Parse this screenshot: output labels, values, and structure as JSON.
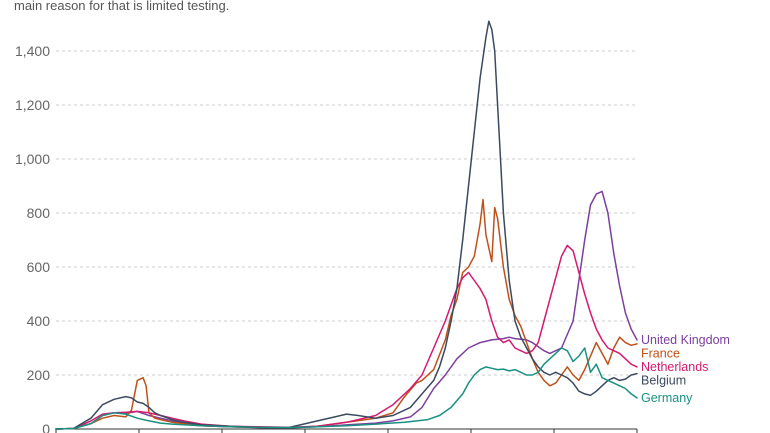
{
  "subtitle": "main reason for that is limited testing.",
  "chart_data": {
    "type": "line",
    "title": "",
    "xlabel": "",
    "ylabel": "",
    "x_range": [
      0,
      100
    ],
    "ylim": [
      0,
      1500
    ],
    "yticks": [
      0,
      200,
      400,
      600,
      800,
      1000,
      1200,
      1400
    ],
    "ytick_labels": [
      "0",
      "200",
      "400",
      "600",
      "800",
      "1,000",
      "1,200",
      "1,400"
    ],
    "grid": true,
    "legend": "inline-right",
    "series": [
      {
        "name": "United Kingdom",
        "color": "#7b3f9e",
        "points": [
          [
            0,
            0
          ],
          [
            3,
            2
          ],
          [
            6,
            20
          ],
          [
            8,
            50
          ],
          [
            10,
            60
          ],
          [
            12,
            58
          ],
          [
            14,
            65
          ],
          [
            16,
            50
          ],
          [
            18,
            40
          ],
          [
            20,
            30
          ],
          [
            22,
            20
          ],
          [
            25,
            12
          ],
          [
            30,
            8
          ],
          [
            35,
            5
          ],
          [
            40,
            4
          ],
          [
            45,
            8
          ],
          [
            50,
            15
          ],
          [
            55,
            22
          ],
          [
            58,
            30
          ],
          [
            61,
            45
          ],
          [
            63,
            80
          ],
          [
            65,
            150
          ],
          [
            67,
            200
          ],
          [
            69,
            260
          ],
          [
            71,
            300
          ],
          [
            73,
            320
          ],
          [
            75,
            330
          ],
          [
            77,
            335
          ],
          [
            78,
            340
          ],
          [
            79,
            335
          ],
          [
            81,
            330
          ],
          [
            82,
            320
          ],
          [
            84,
            290
          ],
          [
            85,
            280
          ],
          [
            87,
            300
          ],
          [
            89,
            400
          ],
          [
            90,
            550
          ],
          [
            91,
            700
          ],
          [
            92,
            830
          ],
          [
            93,
            870
          ],
          [
            94,
            880
          ],
          [
            95,
            800
          ],
          [
            96,
            650
          ],
          [
            97,
            530
          ],
          [
            98,
            430
          ],
          [
            99,
            370
          ],
          [
            100,
            330
          ]
        ]
      },
      {
        "name": "France",
        "color": "#c0501a",
        "points": [
          [
            0,
            0
          ],
          [
            3,
            2
          ],
          [
            6,
            20
          ],
          [
            8,
            40
          ],
          [
            10,
            50
          ],
          [
            12,
            45
          ],
          [
            13,
            70
          ],
          [
            14,
            180
          ],
          [
            15,
            190
          ],
          [
            15.5,
            160
          ],
          [
            16,
            60
          ],
          [
            17,
            40
          ],
          [
            18,
            35
          ],
          [
            20,
            25
          ],
          [
            25,
            12
          ],
          [
            30,
            8
          ],
          [
            35,
            6
          ],
          [
            40,
            5
          ],
          [
            45,
            10
          ],
          [
            50,
            25
          ],
          [
            55,
            40
          ],
          [
            58,
            60
          ],
          [
            60,
            120
          ],
          [
            62,
            170
          ],
          [
            63,
            180
          ],
          [
            65,
            220
          ],
          [
            67,
            330
          ],
          [
            68,
            420
          ],
          [
            69,
            480
          ],
          [
            70,
            580
          ],
          [
            71,
            600
          ],
          [
            72,
            640
          ],
          [
            73,
            760
          ],
          [
            73.5,
            850
          ],
          [
            74,
            720
          ],
          [
            75,
            620
          ],
          [
            75.5,
            820
          ],
          [
            76,
            780
          ],
          [
            77,
            600
          ],
          [
            78,
            480
          ],
          [
            79,
            420
          ],
          [
            80,
            380
          ],
          [
            81,
            320
          ],
          [
            82,
            260
          ],
          [
            83,
            210
          ],
          [
            84,
            180
          ],
          [
            85,
            160
          ],
          [
            86,
            170
          ],
          [
            87,
            200
          ],
          [
            88,
            230
          ],
          [
            89,
            200
          ],
          [
            90,
            180
          ],
          [
            91,
            220
          ],
          [
            92,
            270
          ],
          [
            93,
            320
          ],
          [
            94,
            280
          ],
          [
            95,
            240
          ],
          [
            96,
            300
          ],
          [
            97,
            340
          ],
          [
            98,
            320
          ],
          [
            99,
            310
          ],
          [
            100,
            315
          ]
        ]
      },
      {
        "name": "Netherlands",
        "color": "#d41a6e",
        "points": [
          [
            0,
            0
          ],
          [
            3,
            2
          ],
          [
            6,
            30
          ],
          [
            8,
            55
          ],
          [
            10,
            60
          ],
          [
            12,
            62
          ],
          [
            14,
            65
          ],
          [
            16,
            60
          ],
          [
            18,
            50
          ],
          [
            20,
            40
          ],
          [
            22,
            30
          ],
          [
            25,
            18
          ],
          [
            30,
            10
          ],
          [
            35,
            8
          ],
          [
            40,
            6
          ],
          [
            45,
            10
          ],
          [
            50,
            25
          ],
          [
            55,
            50
          ],
          [
            58,
            90
          ],
          [
            61,
            150
          ],
          [
            63,
            200
          ],
          [
            65,
            300
          ],
          [
            67,
            400
          ],
          [
            68,
            460
          ],
          [
            69,
            520
          ],
          [
            70,
            560
          ],
          [
            71,
            580
          ],
          [
            72,
            550
          ],
          [
            73,
            520
          ],
          [
            74,
            480
          ],
          [
            75,
            400
          ],
          [
            76,
            340
          ],
          [
            77,
            320
          ],
          [
            78,
            330
          ],
          [
            79,
            300
          ],
          [
            80,
            290
          ],
          [
            81,
            280
          ],
          [
            82,
            290
          ],
          [
            83,
            320
          ],
          [
            84,
            400
          ],
          [
            85,
            480
          ],
          [
            86,
            560
          ],
          [
            87,
            640
          ],
          [
            88,
            680
          ],
          [
            89,
            660
          ],
          [
            90,
            580
          ],
          [
            91,
            500
          ],
          [
            92,
            430
          ],
          [
            93,
            370
          ],
          [
            94,
            330
          ],
          [
            95,
            300
          ],
          [
            96,
            290
          ],
          [
            97,
            280
          ],
          [
            98,
            260
          ],
          [
            99,
            240
          ],
          [
            100,
            230
          ]
        ]
      },
      {
        "name": "Belgium",
        "color": "#3b4a5e",
        "points": [
          [
            0,
            0
          ],
          [
            3,
            2
          ],
          [
            6,
            40
          ],
          [
            8,
            90
          ],
          [
            10,
            110
          ],
          [
            12,
            120
          ],
          [
            13,
            115
          ],
          [
            14,
            100
          ],
          [
            15,
            95
          ],
          [
            16,
            80
          ],
          [
            17,
            60
          ],
          [
            18,
            50
          ],
          [
            20,
            35
          ],
          [
            22,
            25
          ],
          [
            25,
            15
          ],
          [
            30,
            10
          ],
          [
            35,
            6
          ],
          [
            40,
            5
          ],
          [
            45,
            30
          ],
          [
            48,
            45
          ],
          [
            50,
            55
          ],
          [
            52,
            50
          ],
          [
            55,
            40
          ],
          [
            58,
            50
          ],
          [
            61,
            80
          ],
          [
            63,
            130
          ],
          [
            65,
            180
          ],
          [
            66,
            230
          ],
          [
            67,
            300
          ],
          [
            68,
            400
          ],
          [
            69,
            520
          ],
          [
            70,
            700
          ],
          [
            71,
            900
          ],
          [
            72,
            1100
          ],
          [
            73,
            1300
          ],
          [
            74,
            1450
          ],
          [
            74.5,
            1510
          ],
          [
            75,
            1480
          ],
          [
            75.5,
            1400
          ],
          [
            76,
            1200
          ],
          [
            77,
            800
          ],
          [
            78,
            550
          ],
          [
            79,
            400
          ],
          [
            80,
            340
          ],
          [
            81,
            300
          ],
          [
            82,
            260
          ],
          [
            83,
            230
          ],
          [
            84,
            210
          ],
          [
            85,
            200
          ],
          [
            86,
            210
          ],
          [
            87,
            200
          ],
          [
            88,
            190
          ],
          [
            89,
            170
          ],
          [
            90,
            140
          ],
          [
            91,
            130
          ],
          [
            92,
            125
          ],
          [
            93,
            140
          ],
          [
            94,
            160
          ],
          [
            95,
            180
          ],
          [
            96,
            190
          ],
          [
            97,
            180
          ],
          [
            98,
            185
          ],
          [
            99,
            200
          ],
          [
            100,
            205
          ]
        ]
      },
      {
        "name": "Germany",
        "color": "#1a9080",
        "points": [
          [
            0,
            0
          ],
          [
            3,
            2
          ],
          [
            6,
            20
          ],
          [
            8,
            50
          ],
          [
            10,
            60
          ],
          [
            12,
            55
          ],
          [
            14,
            40
          ],
          [
            16,
            30
          ],
          [
            18,
            22
          ],
          [
            20,
            18
          ],
          [
            25,
            12
          ],
          [
            30,
            8
          ],
          [
            35,
            6
          ],
          [
            40,
            5
          ],
          [
            45,
            8
          ],
          [
            50,
            12
          ],
          [
            55,
            18
          ],
          [
            60,
            25
          ],
          [
            64,
            35
          ],
          [
            66,
            50
          ],
          [
            68,
            80
          ],
          [
            70,
            130
          ],
          [
            71,
            170
          ],
          [
            72,
            200
          ],
          [
            73,
            220
          ],
          [
            74,
            230
          ],
          [
            75,
            225
          ],
          [
            76,
            220
          ],
          [
            77,
            222
          ],
          [
            78,
            215
          ],
          [
            79,
            220
          ],
          [
            80,
            210
          ],
          [
            81,
            200
          ],
          [
            82,
            200
          ],
          [
            83,
            210
          ],
          [
            84,
            240
          ],
          [
            85,
            260
          ],
          [
            86,
            280
          ],
          [
            87,
            300
          ],
          [
            88,
            290
          ],
          [
            89,
            250
          ],
          [
            90,
            270
          ],
          [
            91,
            300
          ],
          [
            92,
            210
          ],
          [
            93,
            240
          ],
          [
            94,
            190
          ],
          [
            95,
            180
          ],
          [
            96,
            170
          ],
          [
            97,
            160
          ],
          [
            98,
            150
          ],
          [
            99,
            130
          ],
          [
            100,
            115
          ]
        ]
      }
    ]
  }
}
